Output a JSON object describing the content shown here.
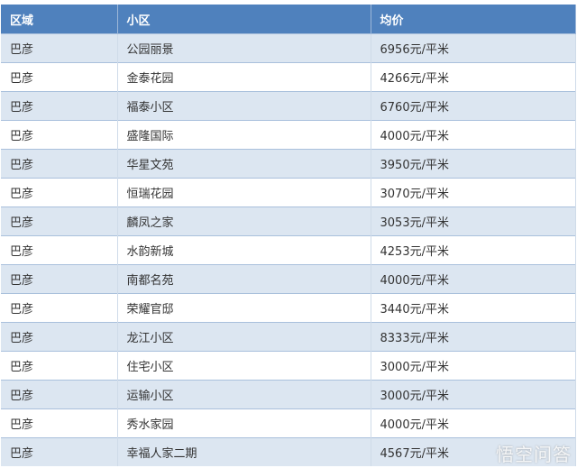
{
  "headers": [
    "区域",
    "小区",
    "均价"
  ],
  "rows": [
    [
      "巴彦",
      "公园丽景",
      "6956元/平米"
    ],
    [
      "巴彦",
      "金泰花园",
      "4266元/平米"
    ],
    [
      "巴彦",
      "福泰小区",
      "6760元/平米"
    ],
    [
      "巴彦",
      "盛隆国际",
      "4000元/平米"
    ],
    [
      "巴彦",
      "华星文苑",
      "3950元/平米"
    ],
    [
      "巴彦",
      "恒瑞花园",
      "3070元/平米"
    ],
    [
      "巴彦",
      "麟凤之家",
      "3053元/平米"
    ],
    [
      "巴彦",
      "水韵新城",
      "4253元/平米"
    ],
    [
      "巴彦",
      "南都名苑",
      "4000元/平米"
    ],
    [
      "巴彦",
      "荣耀官邸",
      "3440元/平米"
    ],
    [
      "巴彦",
      "龙江小区",
      "8333元/平米"
    ],
    [
      "巴彦",
      "住宅小区",
      "3000元/平米"
    ],
    [
      "巴彦",
      "运输小区",
      "3000元/平米"
    ],
    [
      "巴彦",
      "秀水家园",
      "4000元/平米"
    ],
    [
      "巴彦",
      "幸福人家二期",
      "4567元/平米"
    ]
  ],
  "watermark": "悟空问答",
  "colors": {
    "header": "#4f81bd",
    "alt_row": "#dce6f1"
  }
}
